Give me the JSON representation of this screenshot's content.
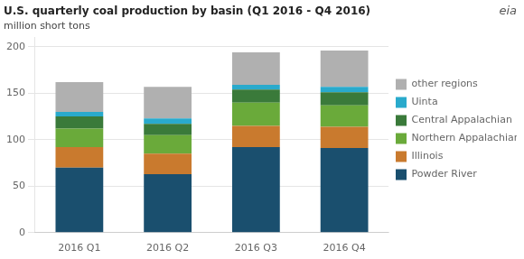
{
  "chart_data": {
    "type": "bar",
    "stacked": true,
    "title": "U.S. quarterly coal production by basin (Q1 2016 - Q4 2016)",
    "subtitle": "million short tons",
    "annotations": [
      "eia"
    ],
    "categories": [
      "2016 Q1",
      "2016 Q2",
      "2016 Q3",
      "2016 Q4"
    ],
    "series": [
      {
        "name": "Powder River",
        "color": "#1a4f6e",
        "values": [
          70,
          63,
          92,
          91
        ]
      },
      {
        "name": "Illinois",
        "color": "#c97a2e",
        "values": [
          22,
          22,
          23,
          23
        ]
      },
      {
        "name": "Northern Appalachian",
        "color": "#6aaa3a",
        "values": [
          20,
          20,
          25,
          23
        ]
      },
      {
        "name": "Central Appalachian",
        "color": "#3a7a3a",
        "values": [
          13,
          12,
          14,
          14
        ]
      },
      {
        "name": "Uinta",
        "color": "#29aacc",
        "values": [
          5,
          6,
          5,
          6
        ]
      },
      {
        "name": "other regions",
        "color": "#b0b0b0",
        "values": [
          32,
          34,
          35,
          39
        ]
      }
    ],
    "ylim": [
      0,
      210
    ],
    "yticks": [
      0,
      50,
      100,
      150,
      200
    ],
    "grid": true,
    "legend": "right"
  }
}
